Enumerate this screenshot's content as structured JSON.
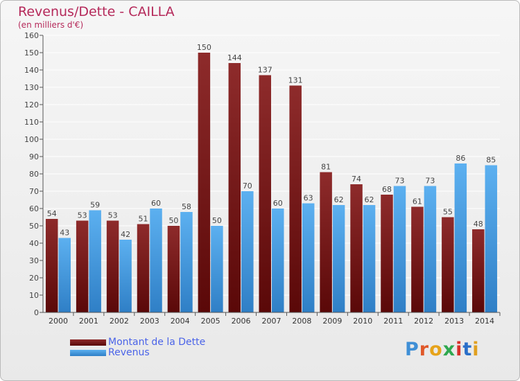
{
  "header": {
    "title": "Revenus/Dette - CAILLA",
    "subtitle": "(en milliers d'€)"
  },
  "legend": {
    "items": [
      {
        "label": "Montant de la Dette",
        "color": "#7a1a1a"
      },
      {
        "label": "Revenus",
        "color": "#4a9ee3"
      }
    ]
  },
  "logo": {
    "text": "Proxiti",
    "letter_colors": [
      "#3f8fd6",
      "#e0582a",
      "#e6a31a",
      "#2fa84f",
      "#d8302a",
      "#2a6fc9",
      "#e0a020"
    ]
  },
  "chart_data": {
    "type": "bar",
    "title": "Revenus/Dette - CAILLA",
    "subtitle": "(en milliers d'€)",
    "xlabel": "",
    "ylabel": "",
    "categories": [
      "2000",
      "2001",
      "2002",
      "2003",
      "2004",
      "2005",
      "2006",
      "2007",
      "2008",
      "2009",
      "2010",
      "2011",
      "2012",
      "2013",
      "2014"
    ],
    "series": [
      {
        "name": "Montant de la Dette",
        "color": "#7a1a1a",
        "values": [
          54,
          53,
          53,
          51,
          50,
          150,
          144,
          137,
          131,
          81,
          74,
          68,
          61,
          55,
          48
        ]
      },
      {
        "name": "Revenus",
        "color": "#4a9ee3",
        "values": [
          43,
          59,
          42,
          60,
          58,
          50,
          70,
          60,
          63,
          62,
          62,
          73,
          73,
          86,
          85
        ]
      }
    ],
    "ylim": [
      0,
      160
    ],
    "ytick_step": 10,
    "grid": true,
    "legend_position": "bottom-left"
  }
}
